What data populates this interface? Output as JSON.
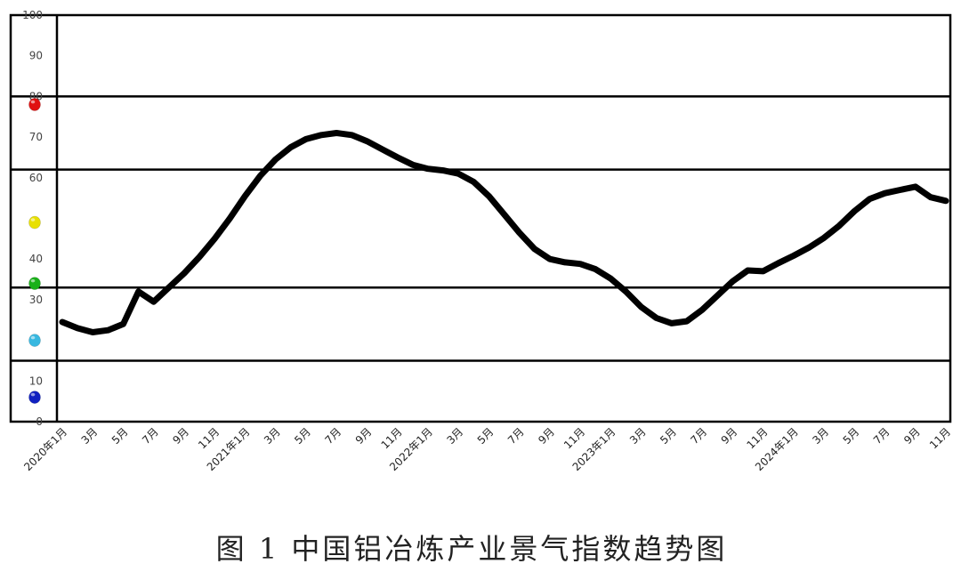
{
  "caption": "图 1 中国铝冶炼产业景气指数趋势图",
  "chart_data": {
    "type": "line",
    "title": "",
    "xlabel": "",
    "ylabel": "",
    "ylim": [
      0,
      100
    ],
    "y_ticks": [
      0,
      10,
      20,
      30,
      40,
      50,
      60,
      70,
      80,
      90,
      100
    ],
    "y_tick_labels": [
      "0",
      "10",
      "",
      "30",
      "40",
      "",
      "60",
      "70",
      "80",
      "90",
      "100"
    ],
    "zone_boundaries": [
      15,
      33,
      62,
      80
    ],
    "zone_markers": [
      {
        "level": 78,
        "color": "#e01010"
      },
      {
        "level": 49,
        "color": "#e8e000"
      },
      {
        "level": 34,
        "color": "#19b019"
      },
      {
        "level": 20,
        "color": "#38b8e0"
      },
      {
        "level": 6,
        "color": "#1020c0"
      }
    ],
    "x_tick_labels": [
      "2020年1月",
      "3月",
      "5月",
      "7月",
      "9月",
      "11月",
      "2021年1月",
      "3月",
      "5月",
      "7月",
      "9月",
      "11月",
      "2022年1月",
      "3月",
      "5月",
      "7月",
      "9月",
      "11月",
      "2023年1月",
      "3月",
      "5月",
      "7月",
      "9月",
      "11月",
      "2024年1月",
      "3月",
      "5月",
      "7月",
      "9月",
      "11月"
    ],
    "series": [
      {
        "color": "#000000",
        "x": [
          "2020-01",
          "2020-02",
          "2020-03",
          "2020-04",
          "2020-05",
          "2020-06",
          "2020-07",
          "2020-08",
          "2020-09",
          "2020-10",
          "2020-11",
          "2020-12",
          "2021-01",
          "2021-02",
          "2021-03",
          "2021-04",
          "2021-05",
          "2021-06",
          "2021-07",
          "2021-08",
          "2021-09",
          "2021-10",
          "2021-11",
          "2021-12",
          "2022-01",
          "2022-02",
          "2022-03",
          "2022-04",
          "2022-05",
          "2022-06",
          "2022-07",
          "2022-08",
          "2022-09",
          "2022-10",
          "2022-11",
          "2022-12",
          "2023-01",
          "2023-02",
          "2023-03",
          "2023-04",
          "2023-05",
          "2023-06",
          "2023-07",
          "2023-08",
          "2023-09",
          "2023-10",
          "2023-11",
          "2023-12",
          "2024-01",
          "2024-02",
          "2024-03",
          "2024-04",
          "2024-05",
          "2024-06",
          "2024-07",
          "2024-08",
          "2024-09",
          "2024-10",
          "2024-11"
        ],
        "values": [
          24.5,
          23,
          22,
          22.5,
          24,
          32,
          29.5,
          33,
          36.5,
          40.5,
          45,
          50,
          55.5,
          60.5,
          64.5,
          67.5,
          69.5,
          70.5,
          71,
          70.5,
          69,
          67,
          65,
          63.2,
          62.2,
          61.8,
          61,
          59,
          55.5,
          51,
          46.5,
          42.5,
          40,
          39.2,
          38.8,
          37.5,
          35.2,
          32,
          28.2,
          25.5,
          24.2,
          24.7,
          27.5,
          31,
          34.5,
          37.2,
          37,
          39,
          40.8,
          42.8,
          45.2,
          48.2,
          51.8,
          54.8,
          56.2,
          57,
          57.8,
          55.2,
          54.3
        ]
      }
    ]
  }
}
